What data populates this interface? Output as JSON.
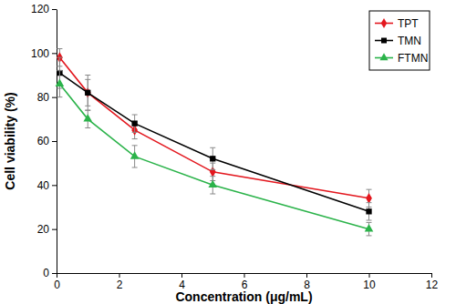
{
  "chart_data": {
    "type": "line",
    "x_label": "Concentration (μg/mL)",
    "y_label": "Cell viability (%)",
    "x": [
      0.1,
      1,
      2.5,
      5,
      10
    ],
    "series": [
      {
        "name": "TPT",
        "color": "#e3171e",
        "marker": "diamond",
        "values": [
          98,
          82,
          65,
          46,
          34
        ],
        "errors": [
          4,
          6,
          4,
          4,
          4
        ]
      },
      {
        "name": "TMN",
        "color": "#000000",
        "marker": "square",
        "values": [
          91,
          82,
          68,
          52,
          28
        ],
        "errors": [
          7,
          8,
          4,
          5,
          4
        ]
      },
      {
        "name": "FTMN",
        "color": "#2bb34a",
        "marker": "triangle",
        "values": [
          86,
          70,
          53,
          40,
          20
        ],
        "errors": [
          6,
          4,
          5,
          4,
          3
        ]
      }
    ],
    "xlim": [
      0,
      12
    ],
    "xticks": [
      0,
      2,
      4,
      6,
      8,
      10,
      12
    ],
    "ylim": [
      0,
      120
    ],
    "yticks": [
      0,
      20,
      40,
      60,
      80,
      100,
      120
    ],
    "grid": false,
    "legend": "top-right"
  }
}
